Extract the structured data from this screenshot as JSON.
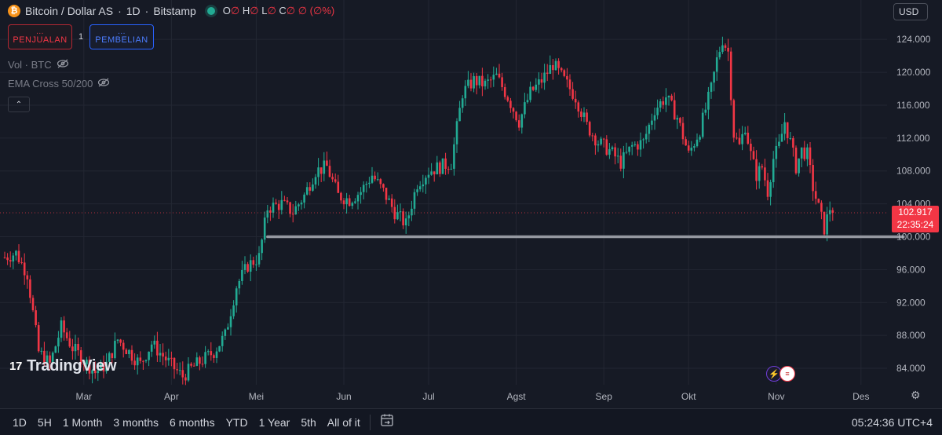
{
  "header": {
    "symbol": "Bitcoin / Dollar AS",
    "interval": "1D",
    "exchange": "Bitstamp",
    "ohlc": {
      "o_label": "O",
      "o_value": "∅",
      "h_label": "H",
      "h_value": "∅",
      "l_label": "L",
      "l_value": "∅",
      "c_label": "C",
      "c_value": "∅",
      "change": "∅ (∅%)"
    }
  },
  "trade": {
    "sell_dots": "...",
    "sell_label": "PENJUALAN",
    "quantity": "1",
    "buy_dots": "...",
    "buy_label": "PEMBELIAN"
  },
  "indicators": [
    {
      "label": "Vol · BTC"
    },
    {
      "label": "EMA Cross 50/200"
    }
  ],
  "collapse_glyph": "⌃",
  "currency": "USD",
  "last_price": {
    "price": "102.917",
    "countdown": "22:35:24"
  },
  "branding": {
    "mark": "17",
    "name": "TradingView"
  },
  "timeframes": [
    "1D",
    "5H",
    "1 Month",
    "3 months",
    "6 months",
    "YTD",
    "1 Year",
    "5th",
    "All of it"
  ],
  "clock": "05:24:36 UTC+4",
  "colors": {
    "up": "#22ab94",
    "down": "#f23645",
    "background": "#161a25",
    "grid": "#232733",
    "support": "#9598a1"
  },
  "chart_data": {
    "type": "candlestick",
    "title": "Bitcoin / Dollar AS · 1D · Bitstamp",
    "ylim": [
      82000,
      126500
    ],
    "y_ticks": [
      84000,
      88000,
      92000,
      96000,
      100000,
      104000,
      108000,
      112000,
      116000,
      120000,
      124000
    ],
    "y_tick_labels": [
      "84.000",
      "88.000",
      "92.000",
      "96.000",
      "100.000",
      "104.000",
      "108.000",
      "112.000",
      "116.000",
      "120.000",
      "124.000"
    ],
    "x_range": [
      1,
      315
    ],
    "x_ticks": [
      {
        "day": 60,
        "label": "Mar"
      },
      {
        "day": 91,
        "label": "Apr"
      },
      {
        "day": 121,
        "label": "Mei"
      },
      {
        "day": 152,
        "label": "Jun"
      },
      {
        "day": 182,
        "label": "Jul"
      },
      {
        "day": 213,
        "label": "Agst"
      },
      {
        "day": 244,
        "label": "Sep"
      },
      {
        "day": 274,
        "label": "Okt"
      },
      {
        "day": 305,
        "label": "Nov"
      },
      {
        "day": 335,
        "label": "Des"
      }
    ],
    "close_anchors": [
      [
        32,
        97500
      ],
      [
        36,
        98000
      ],
      [
        40,
        95500
      ],
      [
        44,
        86000
      ],
      [
        48,
        84500
      ],
      [
        52,
        89000
      ],
      [
        56,
        86500
      ],
      [
        60,
        85000
      ],
      [
        64,
        83500
      ],
      [
        68,
        84500
      ],
      [
        72,
        87500
      ],
      [
        76,
        86000
      ],
      [
        80,
        84500
      ],
      [
        84,
        87000
      ],
      [
        88,
        85500
      ],
      [
        92,
        84000
      ],
      [
        95,
        83000
      ],
      [
        98,
        84000
      ],
      [
        102,
        85000
      ],
      [
        106,
        86000
      ],
      [
        110,
        88000
      ],
      [
        114,
        94000
      ],
      [
        118,
        96500
      ],
      [
        122,
        97500
      ],
      [
        125,
        103500
      ],
      [
        130,
        104000
      ],
      [
        134,
        103000
      ],
      [
        138,
        105000
      ],
      [
        142,
        108000
      ],
      [
        146,
        108500
      ],
      [
        150,
        105000
      ],
      [
        154,
        104500
      ],
      [
        158,
        105500
      ],
      [
        162,
        107500
      ],
      [
        166,
        105500
      ],
      [
        170,
        103000
      ],
      [
        174,
        101500
      ],
      [
        178,
        106500
      ],
      [
        182,
        108000
      ],
      [
        186,
        108500
      ],
      [
        190,
        109000
      ],
      [
        194,
        117500
      ],
      [
        198,
        119000
      ],
      [
        202,
        118500
      ],
      [
        206,
        119500
      ],
      [
        210,
        117000
      ],
      [
        214,
        114000
      ],
      [
        218,
        117500
      ],
      [
        222,
        119000
      ],
      [
        226,
        121000
      ],
      [
        230,
        119000
      ],
      [
        234,
        117000
      ],
      [
        238,
        113500
      ],
      [
        242,
        111500
      ],
      [
        246,
        110500
      ],
      [
        250,
        109000
      ],
      [
        254,
        111000
      ],
      [
        258,
        111500
      ],
      [
        262,
        115500
      ],
      [
        266,
        117000
      ],
      [
        270,
        114500
      ],
      [
        274,
        110000
      ],
      [
        278,
        113000
      ],
      [
        282,
        118000
      ],
      [
        284,
        121500
      ],
      [
        286,
        124000
      ],
      [
        288,
        122500
      ],
      [
        290,
        112500
      ],
      [
        292,
        111000
      ],
      [
        294,
        113500
      ],
      [
        296,
        110000
      ],
      [
        298,
        107500
      ],
      [
        300,
        108500
      ],
      [
        302,
        105500
      ],
      [
        304,
        109500
      ],
      [
        306,
        111000
      ],
      [
        308,
        114000
      ],
      [
        310,
        111500
      ],
      [
        312,
        108500
      ],
      [
        314,
        110500
      ],
      [
        316,
        110000
      ],
      [
        318,
        106000
      ],
      [
        320,
        103500
      ],
      [
        322,
        101000
      ],
      [
        324,
        103500
      ],
      [
        325,
        102917
      ]
    ],
    "last_close": 102917,
    "support_level": 100000,
    "support_from_day": 125,
    "support_to_day": 350
  }
}
